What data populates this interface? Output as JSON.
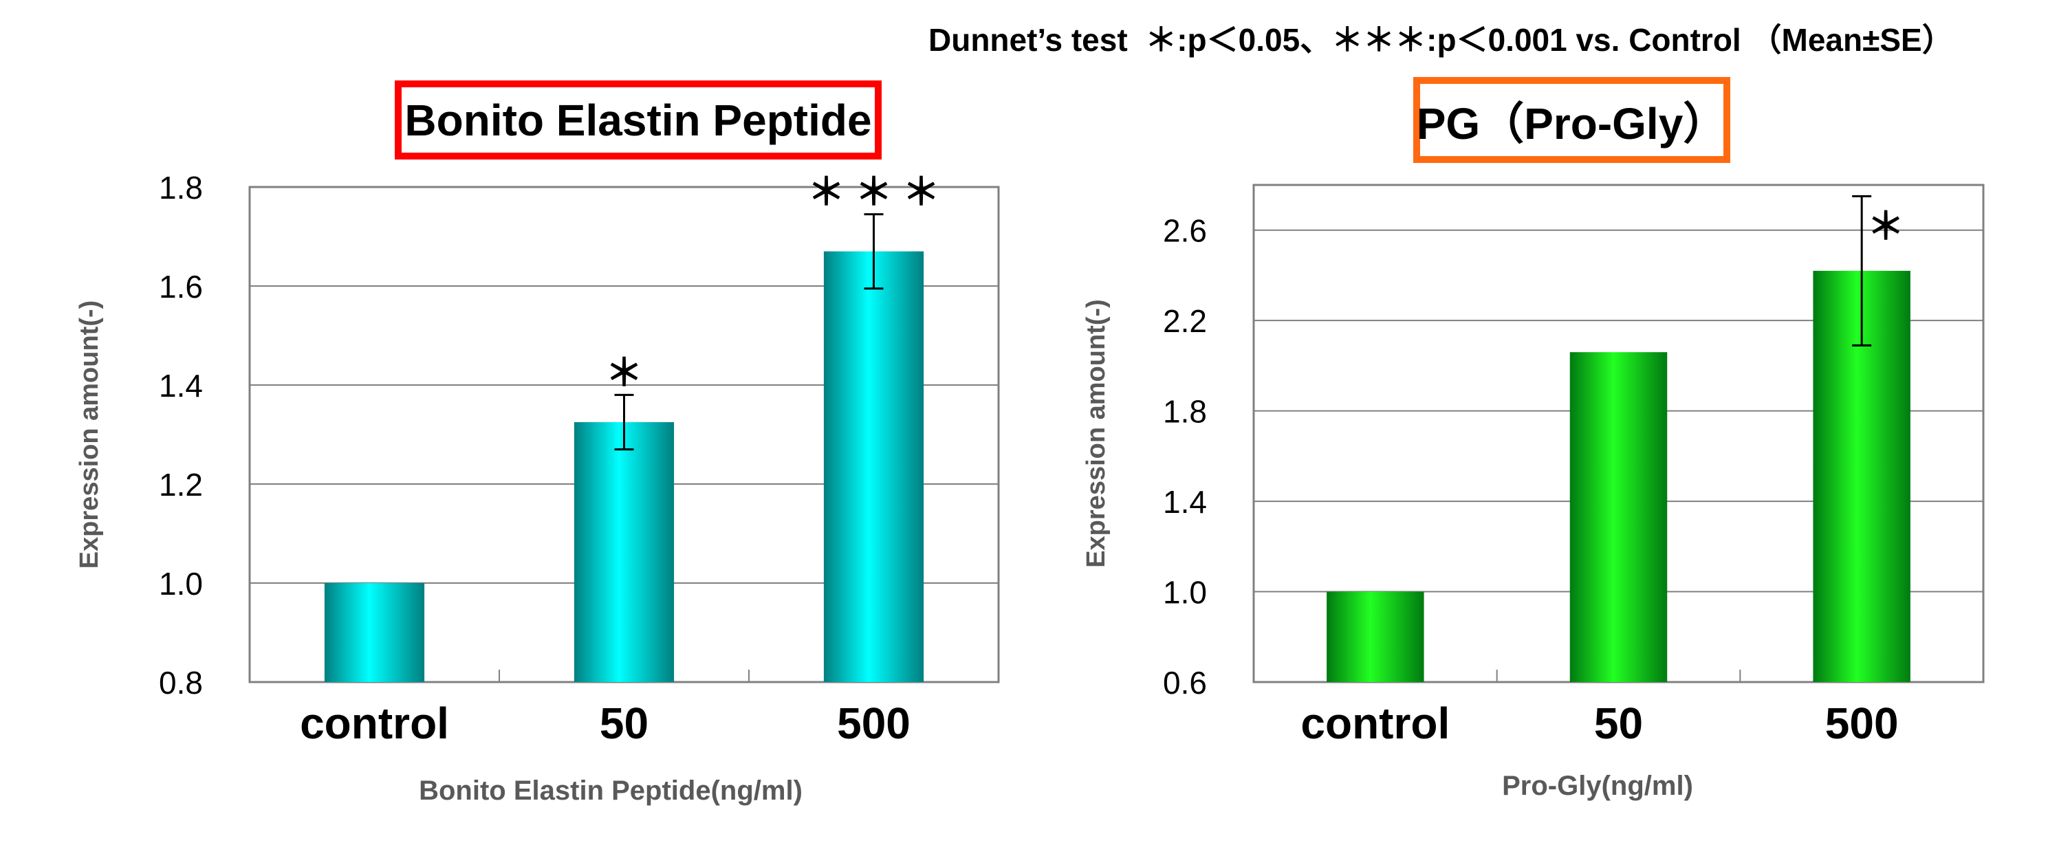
{
  "header_note": "Dunnet’s test  ＊:p＜0.05、＊＊＊:p＜0.001 vs. Control （Mean±SE）",
  "colors": {
    "cyan_light": "#00ffff",
    "cyan_dark": "#007f80",
    "green_light": "#22ff22",
    "green_dark": "#007a10",
    "title_border_left": "#ff0000",
    "title_border_right": "#ff6a10",
    "axis_label": "#595959"
  },
  "chart_data": [
    {
      "type": "bar",
      "title": "Bonito Elastin Peptide",
      "xlabel": "Bonito Elastin Peptide(ng/ml)",
      "ylabel": "Expression amount(-)",
      "categories": [
        "control",
        "50",
        "500"
      ],
      "values": [
        1.0,
        1.325,
        1.67
      ],
      "errors": [
        0.0,
        0.055,
        0.075
      ],
      "significance": [
        "",
        "＊",
        "＊ ＊ ＊"
      ],
      "ylim": [
        0.8,
        1.8
      ],
      "yticks": [
        "0.8",
        "1.0",
        "1.2",
        "1.4",
        "1.6",
        "1.8"
      ],
      "grid": true,
      "color_scheme": "cyan"
    },
    {
      "type": "bar",
      "title": "PG（Pro-Gly）",
      "xlabel": "Pro-Gly(ng/ml)",
      "ylabel": "Expression amount(-)",
      "categories": [
        "control",
        "50",
        "500"
      ],
      "values": [
        1.0,
        2.06,
        2.42
      ],
      "errors": [
        0.0,
        0.0,
        0.33
      ],
      "significance": [
        "",
        "",
        "＊"
      ],
      "ylim": [
        0.6,
        2.8
      ],
      "yticks": [
        "0.6",
        "1.0",
        "1.4",
        "1.8",
        "2.2",
        "2.6"
      ],
      "grid": true,
      "color_scheme": "green"
    }
  ]
}
